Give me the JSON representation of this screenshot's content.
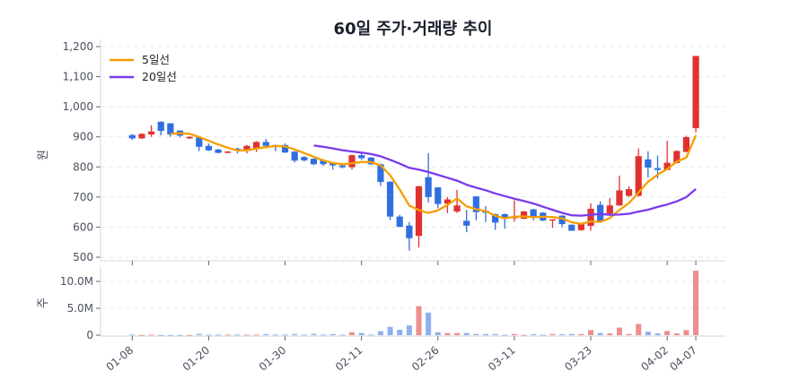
{
  "chart_data": [
    {
      "type": "candlestick",
      "title": "60일 주가·거래량 추이",
      "ylabel": "원",
      "ylim": [
        490,
        1200
      ],
      "yticks": [
        "500",
        "600",
        "700",
        "800",
        "900",
        "1,000",
        "1,100",
        "1,200"
      ],
      "grid": true,
      "legend_position": "top-left",
      "colors": {
        "up": "#e03131",
        "down": "#2f6fe0",
        "ma5": "#f59f00",
        "ma20": "#7c3aed"
      },
      "legend": [
        {
          "name": "5일선",
          "period": 5,
          "color": "#f59f00"
        },
        {
          "name": "20일선",
          "period": 20,
          "color": "#7c3aed"
        }
      ],
      "dates": [
        "01-08",
        "01-09",
        "01-12",
        "01-13",
        "01-14",
        "01-15",
        "01-16",
        "01-19",
        "01-20",
        "01-21",
        "01-22",
        "01-23",
        "01-26",
        "01-27",
        "01-28",
        "01-29",
        "01-30",
        "02-02",
        "02-03",
        "02-04",
        "02-05",
        "02-06",
        "02-09",
        "02-10",
        "02-11",
        "02-12",
        "02-13",
        "02-19",
        "02-20",
        "02-23",
        "02-24",
        "02-25",
        "02-26",
        "02-27",
        "03-03",
        "03-04",
        "03-05",
        "03-06",
        "03-09",
        "03-10",
        "03-11",
        "03-12",
        "03-13",
        "03-16",
        "03-17",
        "03-18",
        "03-19",
        "03-20",
        "03-23",
        "03-24",
        "03-25",
        "03-26",
        "03-27",
        "03-30",
        "03-31",
        "04-01",
        "04-02",
        "04-03",
        "04-06",
        "04-07"
      ],
      "xtick_labels": [
        "01-08",
        "01-20",
        "01-30",
        "02-11",
        "02-26",
        "03-11",
        "03-23",
        "04-02",
        "04-07"
      ],
      "ohlc": [
        [
          906,
          910,
          890,
          895
        ],
        [
          895,
          912,
          893,
          910
        ],
        [
          908,
          938,
          900,
          918
        ],
        [
          950,
          952,
          905,
          920
        ],
        [
          945,
          946,
          900,
          908
        ],
        [
          921,
          922,
          897,
          904
        ],
        [
          895,
          902,
          893,
          900
        ],
        [
          898,
          899,
          853,
          867
        ],
        [
          870,
          878,
          853,
          855
        ],
        [
          858,
          860,
          845,
          847
        ],
        [
          848,
          853,
          846,
          851
        ],
        [
          861,
          864,
          845,
          855
        ],
        [
          853,
          873,
          845,
          870
        ],
        [
          863,
          886,
          850,
          883
        ],
        [
          883,
          893,
          868,
          870
        ],
        [
          873,
          874,
          852,
          870
        ],
        [
          873,
          878,
          846,
          848
        ],
        [
          851,
          853,
          815,
          821
        ],
        [
          833,
          836,
          818,
          822
        ],
        [
          827,
          829,
          806,
          809
        ],
        [
          823,
          826,
          803,
          809
        ],
        [
          813,
          815,
          791,
          805
        ],
        [
          805,
          809,
          795,
          799
        ],
        [
          799,
          841,
          791,
          839
        ],
        [
          839,
          849,
          823,
          829
        ],
        [
          831,
          833,
          806,
          809
        ],
        [
          809,
          811,
          737,
          750
        ],
        [
          751,
          752,
          623,
          635
        ],
        [
          635,
          641,
          600,
          601
        ],
        [
          605,
          617,
          522,
          563
        ],
        [
          571,
          737,
          532,
          736
        ],
        [
          766,
          846,
          682,
          700
        ],
        [
          732,
          733,
          662,
          677
        ],
        [
          678,
          700,
          647,
          692
        ],
        [
          652,
          724,
          647,
          672
        ],
        [
          621,
          657,
          583,
          605
        ],
        [
          702,
          703,
          623,
          650
        ],
        [
          654,
          670,
          617,
          648
        ],
        [
          643,
          645,
          591,
          615
        ],
        [
          643,
          645,
          595,
          628
        ],
        [
          630,
          689,
          618,
          634
        ],
        [
          628,
          654,
          626,
          652
        ],
        [
          659,
          661,
          622,
          635
        ],
        [
          648,
          650,
          620,
          622
        ],
        [
          622,
          626,
          598,
          626
        ],
        [
          638,
          640,
          600,
          610
        ],
        [
          608,
          609,
          588,
          588
        ],
        [
          590,
          612,
          588,
          610
        ],
        [
          604,
          679,
          588,
          661
        ],
        [
          674,
          686,
          618,
          618
        ],
        [
          645,
          696,
          644,
          672
        ],
        [
          672,
          771,
          671,
          722
        ],
        [
          704,
          736,
          700,
          726
        ],
        [
          704,
          862,
          701,
          836
        ],
        [
          825,
          852,
          765,
          798
        ],
        [
          796,
          838,
          762,
          790
        ],
        [
          790,
          887,
          790,
          814
        ],
        [
          813,
          855,
          812,
          853
        ],
        [
          850,
          904,
          849,
          899
        ],
        [
          929,
          1169,
          915,
          1169
        ]
      ]
    },
    {
      "type": "bar",
      "ylabel": "주",
      "ylim": [
        0,
        12500000
      ],
      "yticks": [
        "0",
        "5.0M",
        "10.0M"
      ],
      "grid": true,
      "volume": [
        0.1,
        0.04,
        0.1,
        0.03,
        0.03,
        0.03,
        0.03,
        0.22,
        0.1,
        0.1,
        0.1,
        0.1,
        0.1,
        0.1,
        0.2,
        0.1,
        0.1,
        0.22,
        0.1,
        0.25,
        0.1,
        0.2,
        0.1,
        0.55,
        0.4,
        0.1,
        0.75,
        1.55,
        1.0,
        1.8,
        5.4,
        4.2,
        0.55,
        0.4,
        0.4,
        0.4,
        0.22,
        0.22,
        0.22,
        0.06,
        0.22,
        0.06,
        0.17,
        0.06,
        0.22,
        0.17,
        0.22,
        0.22,
        0.95,
        0.4,
        0.33,
        1.4,
        0.22,
        2.1,
        0.67,
        0.33,
        0.78,
        0.33,
        0.95,
        12.0
      ],
      "volume_unit": "M"
    }
  ]
}
